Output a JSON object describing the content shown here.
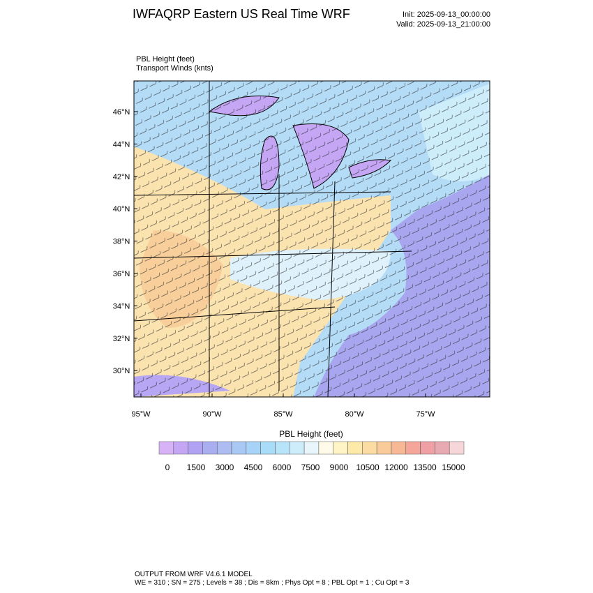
{
  "header": {
    "title": "IWFAQRP Eastern US Real Time WRF",
    "init": "Init: 2025-09-13_00:00:00",
    "valid": "Valid: 2025-09-13_21:00:00"
  },
  "fields": [
    "PBL Height   (feet)",
    "Transport Winds   (knts)"
  ],
  "map": {
    "lat_ticks": [
      {
        "value": 30,
        "label": "30°N"
      },
      {
        "value": 32,
        "label": "32°N"
      },
      {
        "value": 34,
        "label": "34°N"
      },
      {
        "value": 36,
        "label": "36°N"
      },
      {
        "value": 38,
        "label": "38°N"
      },
      {
        "value": 40,
        "label": "40°N"
      },
      {
        "value": 42,
        "label": "42°N"
      },
      {
        "value": 44,
        "label": "44°N"
      },
      {
        "value": 46,
        "label": "46°N"
      }
    ],
    "lon_ticks": [
      {
        "value": -95,
        "label": "95°W"
      },
      {
        "value": -90,
        "label": "90°W"
      },
      {
        "value": -85,
        "label": "85°W"
      },
      {
        "value": -80,
        "label": "80°W"
      },
      {
        "value": -75,
        "label": "75°W"
      }
    ]
  },
  "colorbar": {
    "title": "PBL Height  (feet)",
    "colors": [
      "#d8b2f7",
      "#c4a6f5",
      "#b2a2f3",
      "#a9aef1",
      "#aebdf1",
      "#a9c8f4",
      "#a6d3f7",
      "#a8dcf8",
      "#b8e4f9",
      "#cdedfb",
      "#e8f6fc",
      "#fffbe8",
      "#fff4c6",
      "#fdeaa9",
      "#fbdca2",
      "#f9cb9b",
      "#f7b895",
      "#f5a69a",
      "#eea0a4",
      "#e8aab2",
      "#f7d6da"
    ],
    "ticks": [
      0,
      1500,
      3000,
      4500,
      6000,
      7500,
      9000,
      10500,
      12000,
      13500,
      15000
    ]
  },
  "footer": [
    "OUTPUT FROM WRF V4.6.1 MODEL",
    "WE = 310 ; SN = 275 ; Levels = 38 ; Dis = 8km ; Phys Opt = 8 ; PBL Opt = 1 ; Cu Opt = 3"
  ]
}
